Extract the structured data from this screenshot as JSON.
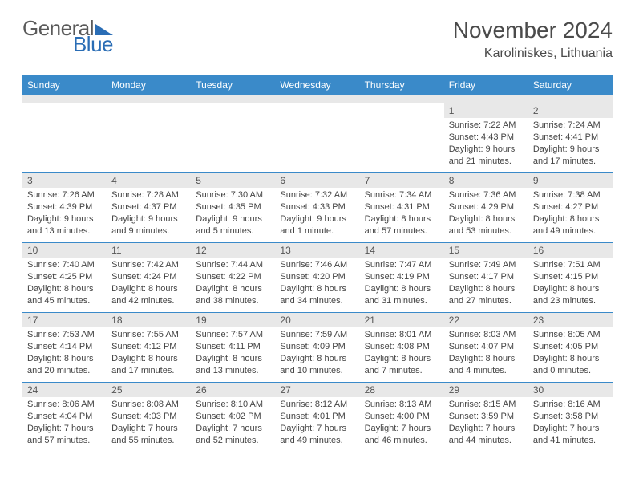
{
  "logo": {
    "line1": "General",
    "line2": "Blue"
  },
  "title": "November 2024",
  "location": "Karoliniskes, Lithuania",
  "colors": {
    "header_bg": "#3a8ac9",
    "header_fg": "#ffffff",
    "daynum_bg": "#e8e8e8",
    "border": "#3a8ac9",
    "logo_blue": "#2a6db5",
    "logo_gray": "#5a5a5a",
    "text": "#444444"
  },
  "weekdays": [
    "Sunday",
    "Monday",
    "Tuesday",
    "Wednesday",
    "Thursday",
    "Friday",
    "Saturday"
  ],
  "weeks": [
    [
      null,
      null,
      null,
      null,
      null,
      {
        "n": "1",
        "sr": "7:22 AM",
        "ss": "4:43 PM",
        "dl": "9 hours and 21 minutes."
      },
      {
        "n": "2",
        "sr": "7:24 AM",
        "ss": "4:41 PM",
        "dl": "9 hours and 17 minutes."
      }
    ],
    [
      {
        "n": "3",
        "sr": "7:26 AM",
        "ss": "4:39 PM",
        "dl": "9 hours and 13 minutes."
      },
      {
        "n": "4",
        "sr": "7:28 AM",
        "ss": "4:37 PM",
        "dl": "9 hours and 9 minutes."
      },
      {
        "n": "5",
        "sr": "7:30 AM",
        "ss": "4:35 PM",
        "dl": "9 hours and 5 minutes."
      },
      {
        "n": "6",
        "sr": "7:32 AM",
        "ss": "4:33 PM",
        "dl": "9 hours and 1 minute."
      },
      {
        "n": "7",
        "sr": "7:34 AM",
        "ss": "4:31 PM",
        "dl": "8 hours and 57 minutes."
      },
      {
        "n": "8",
        "sr": "7:36 AM",
        "ss": "4:29 PM",
        "dl": "8 hours and 53 minutes."
      },
      {
        "n": "9",
        "sr": "7:38 AM",
        "ss": "4:27 PM",
        "dl": "8 hours and 49 minutes."
      }
    ],
    [
      {
        "n": "10",
        "sr": "7:40 AM",
        "ss": "4:25 PM",
        "dl": "8 hours and 45 minutes."
      },
      {
        "n": "11",
        "sr": "7:42 AM",
        "ss": "4:24 PM",
        "dl": "8 hours and 42 minutes."
      },
      {
        "n": "12",
        "sr": "7:44 AM",
        "ss": "4:22 PM",
        "dl": "8 hours and 38 minutes."
      },
      {
        "n": "13",
        "sr": "7:46 AM",
        "ss": "4:20 PM",
        "dl": "8 hours and 34 minutes."
      },
      {
        "n": "14",
        "sr": "7:47 AM",
        "ss": "4:19 PM",
        "dl": "8 hours and 31 minutes."
      },
      {
        "n": "15",
        "sr": "7:49 AM",
        "ss": "4:17 PM",
        "dl": "8 hours and 27 minutes."
      },
      {
        "n": "16",
        "sr": "7:51 AM",
        "ss": "4:15 PM",
        "dl": "8 hours and 23 minutes."
      }
    ],
    [
      {
        "n": "17",
        "sr": "7:53 AM",
        "ss": "4:14 PM",
        "dl": "8 hours and 20 minutes."
      },
      {
        "n": "18",
        "sr": "7:55 AM",
        "ss": "4:12 PM",
        "dl": "8 hours and 17 minutes."
      },
      {
        "n": "19",
        "sr": "7:57 AM",
        "ss": "4:11 PM",
        "dl": "8 hours and 13 minutes."
      },
      {
        "n": "20",
        "sr": "7:59 AM",
        "ss": "4:09 PM",
        "dl": "8 hours and 10 minutes."
      },
      {
        "n": "21",
        "sr": "8:01 AM",
        "ss": "4:08 PM",
        "dl": "8 hours and 7 minutes."
      },
      {
        "n": "22",
        "sr": "8:03 AM",
        "ss": "4:07 PM",
        "dl": "8 hours and 4 minutes."
      },
      {
        "n": "23",
        "sr": "8:05 AM",
        "ss": "4:05 PM",
        "dl": "8 hours and 0 minutes."
      }
    ],
    [
      {
        "n": "24",
        "sr": "8:06 AM",
        "ss": "4:04 PM",
        "dl": "7 hours and 57 minutes."
      },
      {
        "n": "25",
        "sr": "8:08 AM",
        "ss": "4:03 PM",
        "dl": "7 hours and 55 minutes."
      },
      {
        "n": "26",
        "sr": "8:10 AM",
        "ss": "4:02 PM",
        "dl": "7 hours and 52 minutes."
      },
      {
        "n": "27",
        "sr": "8:12 AM",
        "ss": "4:01 PM",
        "dl": "7 hours and 49 minutes."
      },
      {
        "n": "28",
        "sr": "8:13 AM",
        "ss": "4:00 PM",
        "dl": "7 hours and 46 minutes."
      },
      {
        "n": "29",
        "sr": "8:15 AM",
        "ss": "3:59 PM",
        "dl": "7 hours and 44 minutes."
      },
      {
        "n": "30",
        "sr": "8:16 AM",
        "ss": "3:58 PM",
        "dl": "7 hours and 41 minutes."
      }
    ]
  ],
  "labels": {
    "sunrise": "Sunrise:",
    "sunset": "Sunset:",
    "daylight": "Daylight:"
  }
}
